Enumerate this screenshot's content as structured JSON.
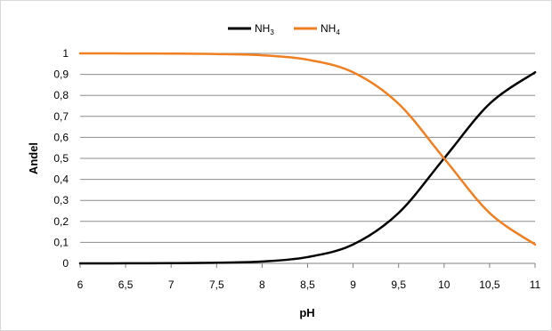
{
  "chart_data": {
    "type": "line",
    "xlabel": "pH",
    "ylabel": "Andel",
    "xlim": [
      6,
      11
    ],
    "ylim": [
      0,
      1
    ],
    "x_ticks": [
      "6",
      "6,5",
      "7",
      "7,5",
      "8",
      "8,5",
      "9",
      "9,5",
      "10",
      "10,5",
      "11"
    ],
    "y_ticks": [
      "0",
      "0,1",
      "0,2",
      "0,3",
      "0,4",
      "0,5",
      "0,6",
      "0,7",
      "0,8",
      "0,9",
      "1"
    ],
    "grid": "horizontal",
    "legend_position": "top-center",
    "x": [
      6,
      6.5,
      7,
      7.5,
      8,
      8.5,
      9,
      9.5,
      10,
      10.5,
      11
    ],
    "series": [
      {
        "name": "NH",
        "subscript": "3",
        "color": "#000000",
        "values": [
          0.0001,
          0.0003,
          0.001,
          0.003,
          0.009,
          0.03,
          0.09,
          0.24,
          0.5,
          0.76,
          0.91
        ]
      },
      {
        "name": "NH",
        "subscript": "4",
        "color": "#f07f22",
        "values": [
          0.9999,
          0.9997,
          0.999,
          0.997,
          0.991,
          0.97,
          0.91,
          0.76,
          0.5,
          0.24,
          0.09
        ]
      }
    ]
  }
}
